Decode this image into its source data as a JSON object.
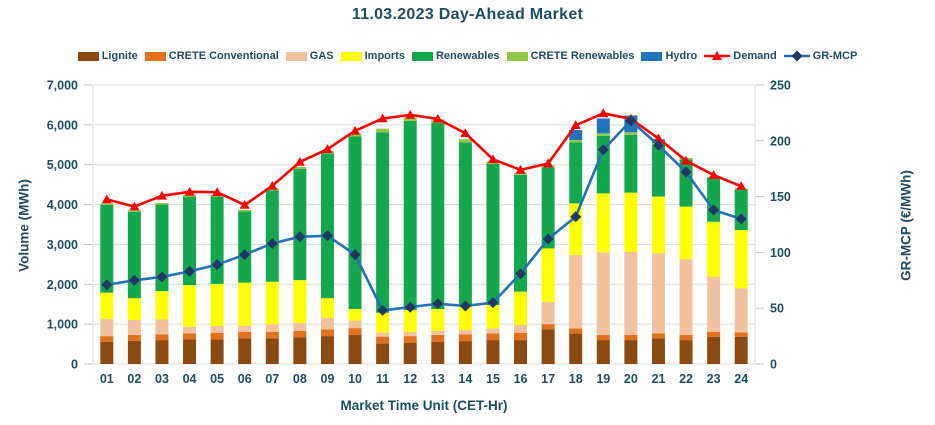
{
  "title": "11.03.2023  Day-Ahead Market",
  "text_color": "#1D4D62",
  "colors": {
    "lignite": "#8C4A10",
    "crete_conventional": "#E2711D",
    "gas": "#F2C29E",
    "imports": "#FFFF00",
    "renewables": "#14A74E",
    "crete_renewables": "#92C846",
    "hydro": "#1F75BC",
    "demand_line": "#FF0000",
    "gr_mcp_line": "#2272B4",
    "gr_mcp_marker": "#1F3864",
    "gridline": "#D9D9D9",
    "tick_mark": "#BFBFBF"
  },
  "chart_data": {
    "type": "bar",
    "subtype": "stacked-bars-with-lines",
    "grid": "horizontal-on",
    "legend_position": "top",
    "categories": [
      "01",
      "02",
      "03",
      "04",
      "05",
      "06",
      "07",
      "08",
      "09",
      "10",
      "11",
      "12",
      "13",
      "14",
      "15",
      "16",
      "17",
      "18",
      "19",
      "20",
      "21",
      "22",
      "23",
      "24"
    ],
    "series": [
      {
        "name": "Lignite",
        "color_key": "lignite",
        "values": [
          560,
          585,
          600,
          620,
          620,
          645,
          645,
          670,
          700,
          730,
          520,
          535,
          560,
          575,
          600,
          600,
          870,
          770,
          600,
          600,
          645,
          600,
          685,
          680
        ]
      },
      {
        "name": "CRETE Conventional",
        "color_key": "crete_conventional",
        "values": [
          140,
          145,
          145,
          150,
          165,
          165,
          165,
          165,
          170,
          170,
          165,
          165,
          170,
          170,
          170,
          185,
          130,
          125,
          130,
          130,
          125,
          130,
          125,
          110
        ]
      },
      {
        "name": "GAS",
        "color_key": "gas",
        "values": [
          430,
          375,
          375,
          165,
          170,
          150,
          185,
          200,
          290,
          190,
          100,
          110,
          105,
          110,
          125,
          195,
          560,
          1840,
          2070,
          2090,
          2010,
          1900,
          1380,
          1110
        ]
      },
      {
        "name": "Imports",
        "color_key": "imports",
        "values": [
          660,
          545,
          710,
          1045,
          1055,
          1080,
          1070,
          1070,
          490,
          290,
          500,
          545,
          545,
          585,
          585,
          835,
          1340,
          1295,
          1480,
          1480,
          1420,
          1320,
          1380,
          1460
        ]
      },
      {
        "name": "Renewables",
        "color_key": "renewables",
        "values": [
          2200,
          2170,
          2170,
          2220,
          2190,
          1790,
          2295,
          2790,
          3635,
          4330,
          4530,
          4745,
          4670,
          4120,
          3540,
          2930,
          2030,
          1530,
          1447,
          1450,
          1300,
          1180,
          1100,
          1020
        ]
      },
      {
        "name": "CRETE Renewables",
        "color_key": "crete_renewables",
        "values": [
          40,
          40,
          40,
          40,
          40,
          40,
          50,
          50,
          60,
          70,
          90,
          90,
          90,
          80,
          60,
          50,
          60,
          60,
          60,
          65,
          40,
          40,
          30,
          30
        ]
      },
      {
        "name": "Hydro",
        "color_key": "hydro",
        "values": [
          0,
          0,
          0,
          0,
          0,
          0,
          0,
          0,
          0,
          0,
          0,
          0,
          0,
          0,
          0,
          0,
          0,
          250,
          375,
          420,
          100,
          0,
          0,
          0
        ]
      }
    ],
    "lines": [
      {
        "name": "Demand",
        "axis": "left",
        "marker": "triangle",
        "color_key": "demand_line",
        "values": [
          4130,
          3950,
          4220,
          4320,
          4310,
          3990,
          4470,
          5070,
          5390,
          5850,
          6160,
          6250,
          6150,
          5790,
          5135,
          4870,
          5030,
          5990,
          6290,
          6150,
          5660,
          5100,
          4740,
          4460
        ]
      },
      {
        "name": "GR-MCP",
        "axis": "right",
        "marker": "diamond",
        "color_key": "gr_mcp_line",
        "values": [
          71,
          75,
          78,
          83,
          89,
          98,
          108,
          114,
          115,
          98,
          48,
          51,
          54,
          52,
          55,
          81,
          112,
          132,
          192,
          218,
          196,
          172,
          138,
          130
        ]
      }
    ],
    "left_axis": {
      "label": "Volume (MWh)",
      "min": 0,
      "max": 7000,
      "step": 1000,
      "ticks": [
        "0",
        "1,000",
        "2,000",
        "3,000",
        "4,000",
        "5,000",
        "6,000",
        "7,000"
      ]
    },
    "right_axis": {
      "label": "GR-MCP (€/MWh)",
      "min": 0,
      "max": 250,
      "step": 50,
      "ticks": [
        "0",
        "50",
        "100",
        "150",
        "200",
        "250"
      ]
    },
    "xlabel": "Market Time Unit (CET-Hr)",
    "title": "11.03.2023  Day-Ahead Market"
  },
  "legend": {
    "items": [
      {
        "label": "Lignite",
        "type": "box",
        "color_key": "lignite"
      },
      {
        "label": "CRETE Conventional",
        "type": "box",
        "color_key": "crete_conventional"
      },
      {
        "label": "GAS",
        "type": "box",
        "color_key": "gas"
      },
      {
        "label": "Imports",
        "type": "box",
        "color_key": "imports"
      },
      {
        "label": "Renewables",
        "type": "box",
        "color_key": "renewables"
      },
      {
        "label": "CRETE Renewables",
        "type": "box",
        "color_key": "crete_renewables"
      },
      {
        "label": "Hydro",
        "type": "box",
        "color_key": "hydro"
      },
      {
        "label": "Demand",
        "type": "line-triangle",
        "color_key": "demand_line"
      },
      {
        "label": "GR-MCP",
        "type": "line-diamond",
        "color_key": "gr_mcp_line"
      }
    ]
  }
}
